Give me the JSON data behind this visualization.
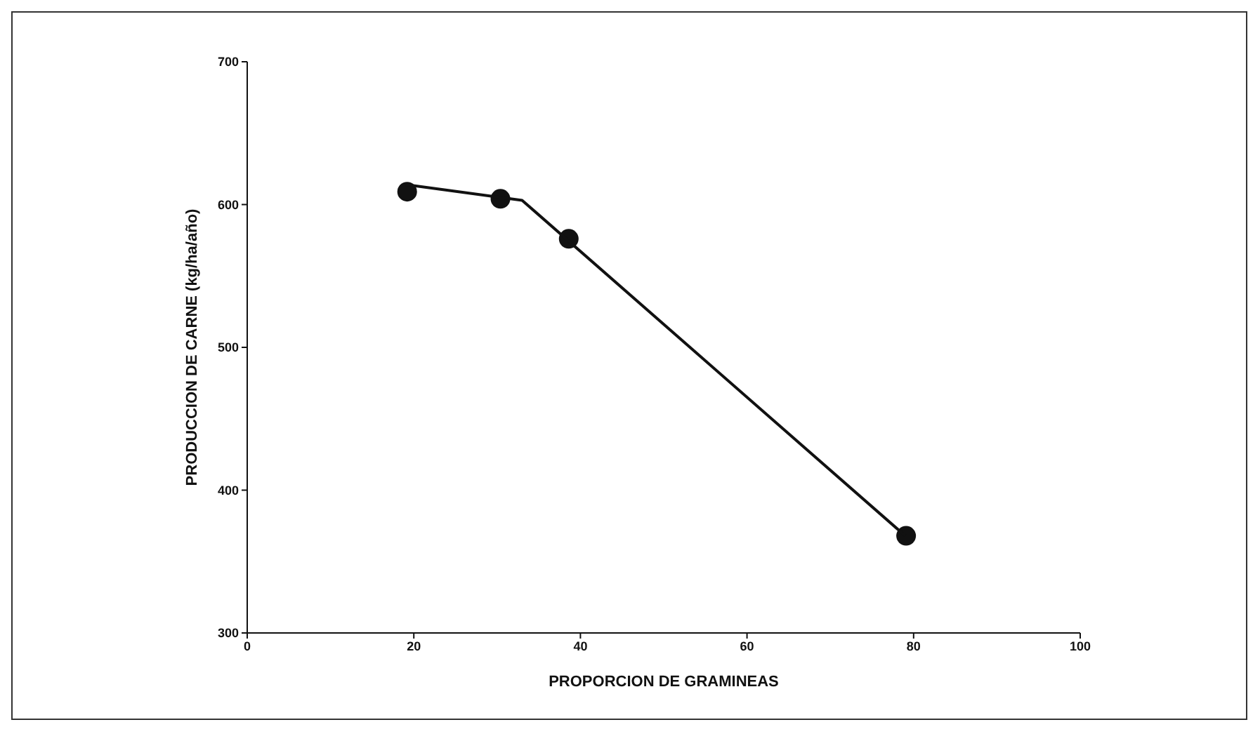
{
  "chart_data": {
    "type": "scatter",
    "xlabel": "PROPORCION DE GRAMINEAS",
    "ylabel": "PRODUCCION DE CARNE (kg/ha/año)",
    "xlim": [
      0,
      100
    ],
    "xticks": [
      0,
      20,
      40,
      60,
      80,
      100
    ],
    "ylim": [
      300,
      700
    ],
    "yticks": [
      300,
      400,
      500,
      600,
      700
    ],
    "grid": false,
    "legend": false,
    "series": [
      {
        "color": "#111111",
        "marker": "circle",
        "x": [
          19.2,
          30.4,
          38.6,
          79.1
        ],
        "values": [
          609,
          604,
          576,
          368
        ]
      },
      {
        "type": "line",
        "color": "#111111",
        "marker": "none",
        "line_style": "solid",
        "x": [
          19,
          33,
          79
        ],
        "values": [
          614,
          603,
          368
        ]
      }
    ]
  }
}
